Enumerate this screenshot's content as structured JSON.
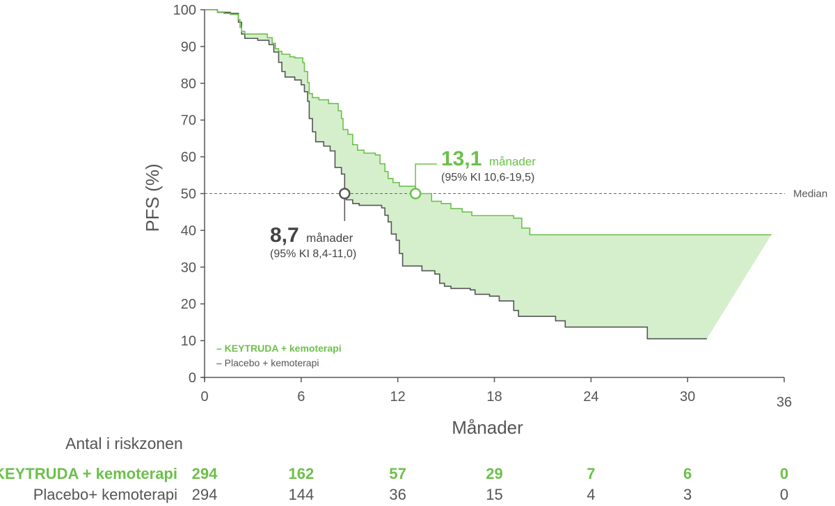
{
  "chart_data": {
    "type": "line",
    "xlabel": "Månader",
    "ylabel": "PFS (%)",
    "xlim": [
      0,
      36
    ],
    "ylim": [
      0,
      100
    ],
    "xticks": [
      0,
      6,
      12,
      18,
      24,
      30,
      36
    ],
    "yticks": [
      0,
      10,
      20,
      30,
      40,
      50,
      60,
      70,
      80,
      90,
      100
    ],
    "reference_line": {
      "y": 50,
      "label": "Median",
      "style": "dashed"
    },
    "series": [
      {
        "name": "KEYTRUDA + kemoterapi",
        "color": "#6cc04a",
        "points": [
          [
            0,
            100
          ],
          [
            0.6,
            100
          ],
          [
            0.8,
            99.4
          ],
          [
            1.2,
            99
          ],
          [
            1.6,
            98.7
          ],
          [
            2.1,
            97.3
          ],
          [
            2.2,
            95.2
          ],
          [
            2.3,
            94.1
          ],
          [
            2.5,
            93.4
          ],
          [
            3.9,
            92.4
          ],
          [
            4.2,
            90.9
          ],
          [
            4.4,
            89.4
          ],
          [
            4.6,
            88.7
          ],
          [
            4.8,
            87.9
          ],
          [
            5.3,
            87.2
          ],
          [
            5.6,
            86.9
          ],
          [
            6.1,
            85.6
          ],
          [
            6.2,
            83.2
          ],
          [
            6.4,
            80.2
          ],
          [
            6.5,
            77.2
          ],
          [
            6.7,
            76.1
          ],
          [
            7.1,
            75.5
          ],
          [
            7.7,
            74.5
          ],
          [
            8.3,
            72.5
          ],
          [
            8.5,
            70.4
          ],
          [
            8.6,
            67.4
          ],
          [
            8.9,
            66.1
          ],
          [
            9.2,
            63.3
          ],
          [
            9.5,
            61.8
          ],
          [
            9.9,
            61
          ],
          [
            10.6,
            60.5
          ],
          [
            10.9,
            58.1
          ],
          [
            11.2,
            56
          ],
          [
            11.4,
            54.1
          ],
          [
            11.7,
            53
          ],
          [
            12.1,
            52
          ],
          [
            13.1,
            50
          ],
          [
            14.1,
            47.9
          ],
          [
            14.7,
            47.3
          ],
          [
            15.3,
            45.9
          ],
          [
            16,
            45
          ],
          [
            16.6,
            44
          ],
          [
            19.2,
            43.3
          ],
          [
            19.7,
            40.6
          ],
          [
            20.2,
            38.8
          ],
          [
            35.2,
            38.8
          ]
        ]
      },
      {
        "name": "Placebo + kemoterapi",
        "color": "#555555",
        "points": [
          [
            0,
            100
          ],
          [
            0.6,
            100
          ],
          [
            0.8,
            99.3
          ],
          [
            1.6,
            99
          ],
          [
            2.1,
            96.6
          ],
          [
            2.3,
            93.4
          ],
          [
            2.5,
            92.2
          ],
          [
            3.3,
            91.7
          ],
          [
            4,
            90.5
          ],
          [
            4.3,
            88.5
          ],
          [
            4.6,
            85.7
          ],
          [
            4.8,
            83.2
          ],
          [
            5,
            81.7
          ],
          [
            5.6,
            80.9
          ],
          [
            6,
            79.6
          ],
          [
            6.2,
            77.7
          ],
          [
            6.4,
            75.1
          ],
          [
            6.5,
            70.4
          ],
          [
            6.7,
            66.8
          ],
          [
            6.9,
            64.1
          ],
          [
            7.4,
            62.9
          ],
          [
            7.8,
            61.6
          ],
          [
            8.1,
            57.1
          ],
          [
            8.5,
            55.3
          ],
          [
            8.7,
            50
          ],
          [
            8.8,
            48.3
          ],
          [
            9.2,
            47.3
          ],
          [
            9.6,
            46.8
          ],
          [
            11,
            46.1
          ],
          [
            11.2,
            44.1
          ],
          [
            11.4,
            42.3
          ],
          [
            11.6,
            39
          ],
          [
            11.9,
            37.3
          ],
          [
            12.1,
            33.7
          ],
          [
            12.3,
            30.3
          ],
          [
            13.5,
            29
          ],
          [
            14.3,
            28.1
          ],
          [
            14.6,
            25.6
          ],
          [
            14.9,
            24.8
          ],
          [
            15.3,
            24.2
          ],
          [
            16.5,
            23.8
          ],
          [
            16.8,
            22.6
          ],
          [
            17.7,
            22.1
          ],
          [
            18.3,
            20.8
          ],
          [
            19.2,
            18.2
          ],
          [
            19.5,
            16.6
          ],
          [
            21.8,
            15.4
          ],
          [
            22.4,
            13.7
          ],
          [
            27.5,
            10.5
          ],
          [
            31.2,
            10.5
          ]
        ]
      }
    ],
    "median_annotations": [
      {
        "series": "KEYTRUDA + kemoterapi",
        "value": "13,1",
        "unit": "månader",
        "ci": "(95% KI 10,6-19,5)",
        "x": 13.1,
        "y": 50
      },
      {
        "series": "Placebo + kemoterapi",
        "value": "8,7",
        "unit": "månader",
        "ci": "(95% KI 8,4-11,0)",
        "x": 8.7,
        "y": 50
      }
    ],
    "legend": {
      "placement": "bottom-left",
      "entries": [
        "– KEYTRUDA + kemoterapi",
        "– Placebo + kemoterapi"
      ]
    },
    "shaded_region": {
      "between": [
        "KEYTRUDA + kemoterapi",
        "Placebo + kemoterapi"
      ],
      "color": "#d5efcc"
    }
  },
  "risk_table": {
    "title": "Antal i riskzonen",
    "rows": [
      {
        "label": "KEYTRUDA + kemoterapi",
        "color": "#6cc04a",
        "bold": true,
        "values": [
          "294",
          "162",
          "57",
          "29",
          "7",
          "6",
          "0"
        ]
      },
      {
        "label": "Placebo+ kemoterapi",
        "color": "#555555",
        "bold": false,
        "values": [
          "294",
          "144",
          "36",
          "15",
          "4",
          "3",
          "0"
        ]
      }
    ]
  },
  "colors": {
    "accent": "#6cc04a",
    "dark": "#555555",
    "fill": "#d5efcc"
  }
}
